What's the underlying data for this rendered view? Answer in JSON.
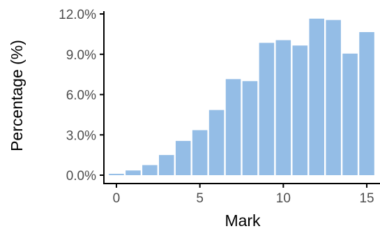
{
  "chart_data": {
    "type": "bar",
    "xlabel": "Mark",
    "ylabel": "Percentage (%)",
    "x": [
      0,
      1,
      2,
      3,
      4,
      5,
      6,
      7,
      8,
      9,
      10,
      11,
      12,
      13,
      14,
      15
    ],
    "values": [
      0.1,
      0.35,
      0.75,
      1.5,
      2.55,
      3.35,
      4.85,
      7.15,
      7.0,
      9.85,
      10.05,
      9.65,
      11.65,
      11.55,
      9.05,
      10.65
    ],
    "xlim": [
      -0.5,
      15.5
    ],
    "ylim": [
      0,
      12
    ],
    "xticks": [
      0,
      5,
      10,
      15
    ],
    "xtick_labels": [
      "0",
      "5",
      "10",
      "15"
    ],
    "yticks": [
      0,
      3,
      6,
      9,
      12
    ],
    "ytick_labels": [
      "0.0%",
      "3.0%",
      "6.0%",
      "9.0%",
      "12.0%"
    ],
    "bar_color": "#94bde6",
    "grid": false,
    "legend": "none"
  }
}
